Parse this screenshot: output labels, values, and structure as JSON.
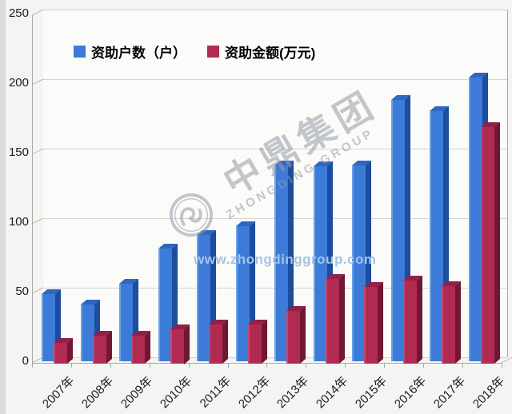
{
  "chart_data": {
    "type": "bar",
    "title": "",
    "categories": [
      "2007年",
      "2008年",
      "2009年",
      "2010年",
      "2011年",
      "2012年",
      "2013年",
      "2014年",
      "2015年",
      "2016年",
      "2017年",
      "2018年"
    ],
    "series": [
      {
        "name": "资助户数（户）",
        "color": "#3d7bd8",
        "color_side": "#1c4d9e",
        "color_top": "#2f66c0",
        "color_highlight": "#6aa0e8",
        "values": [
          48,
          41,
          56,
          81,
          91,
          97,
          141,
          140,
          141,
          188,
          180,
          204
        ]
      },
      {
        "name": "资助金额(万元)",
        "color": "#b12a52",
        "color_side": "#701732",
        "color_top": "#93204a",
        "color_highlight": "#c24a6e",
        "values": [
          15,
          20,
          20,
          25,
          28,
          28,
          38,
          61,
          55,
          60,
          56,
          170
        ]
      }
    ],
    "ylim": [
      0,
      250
    ],
    "yticks": [
      0,
      50,
      100,
      150,
      200,
      250
    ],
    "xlabel": "",
    "ylabel": "",
    "grid": true,
    "legend_position": "top",
    "style": "3d-clustered-column"
  },
  "legend": {
    "item1": "资助户数（户）",
    "item2": "资助金额(万元)"
  },
  "watermark": {
    "brand": "中鼎集团",
    "brand_en": "ZHONGDING GROUP",
    "url": "www.zhongdinggroup.com"
  },
  "colors": {
    "background": "#f4f4f2",
    "gridline": "#d3d3d0",
    "axis": "#a9a9a6",
    "bar_blue": "#3d7bd8",
    "bar_red": "#b12a52",
    "watermark_gray": "#949aa6",
    "watermark_url_blue": "#a3c4e6"
  }
}
